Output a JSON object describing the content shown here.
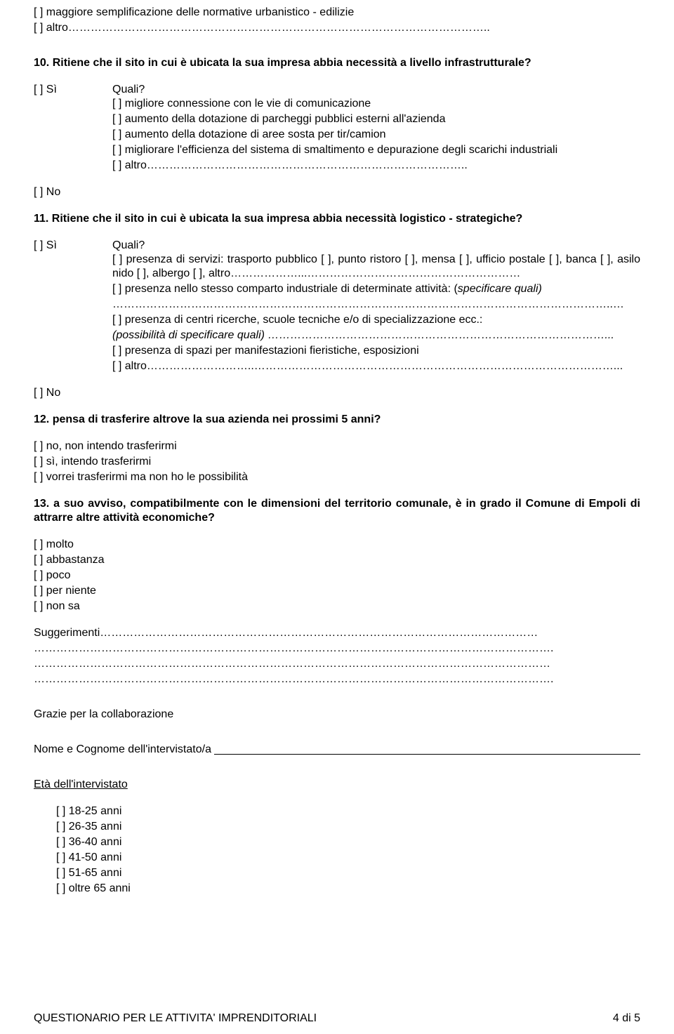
{
  "intro": {
    "opt_semplificazione": "[  ]  maggiore semplificazione delle normative urbanistico - edilizie",
    "opt_altro": "[  ]  altro………………………………………………………………………………………………….."
  },
  "q10": {
    "title": "10. Ritiene che il sito in cui è ubicata la sua impresa abbia necessità a livello infrastrutturale?",
    "si": "[  ]  Sì",
    "quali": "Quali?",
    "opts": {
      "a": "[  ]  migliore connessione con le vie di comunicazione",
      "b": "[  ]  aumento della dotazione di parcheggi pubblici esterni all'azienda",
      "c": "[  ]  aumento della dotazione di aree sosta per tir/camion",
      "d": "[  ]  migliorare l'efficienza del sistema di smaltimento e depurazione degli scarichi industriali",
      "e": "[  ]  altro………………………………………………………………………….."
    },
    "no": "[  ]  No"
  },
  "q11": {
    "title": "11. Ritiene che il sito in cui è ubicata la sua impresa abbia necessità logistico - strategiche?",
    "si": "[  ]  Sì",
    "quali": "Quali?",
    "opts": {
      "a": "[  ] presenza di servizi: trasporto pubblico [  ], punto ristoro [  ], mensa [  ], ufficio postale [  ], banca [  ], asilo nido [  ], albergo [  ], altro………………...…………………………………………………",
      "b": "[  ] presenza nello stesso comparto industriale di determinate attività: (",
      "b_italic": "specificare quali)",
      "b_dots": "……………………………………………………………………………………………………………………..…",
      "c": "[  ] presenza di centri ricerche, scuole tecniche e/o di specializzazione ecc.:",
      "c_italic": "(possibilità di specificare quali) ………………………………………………………………………………...",
      "d": "[  ] presenza di spazi per manifestazioni fieristiche, esposizioni",
      "e": "[  ] altro………………………..……………………………………………………………………………………..."
    },
    "no": "[  ]  No"
  },
  "q12": {
    "title": "12. pensa di trasferire altrove la sua azienda nei prossimi 5 anni?",
    "opts": {
      "a": "[  ]  no, non intendo trasferirmi",
      "b": "[  ]  sì, intendo trasferirmi",
      "c": "[  ]  vorrei trasferirmi ma non ho le possibilità"
    }
  },
  "q13": {
    "title": "13. a suo avviso, compatibilmente con le dimensioni del territorio comunale, è in grado il Comune di Empoli di attrarre altre attività economiche?",
    "opts": {
      "a": "[  ]  molto",
      "b": "[  ]  abbastanza",
      "c": "[  ]  poco",
      "d": "[  ]  per niente",
      "e": "[  ]  non sa"
    }
  },
  "suggerimenti": {
    "line1": "Suggerimenti………………………………………………………………………………………………………",
    "line2": "………………………………………………………………………………………………………………………….",
    "line3": "…………………………………………………………………………………………………………………………",
    "line4": "…………………………………………………………………………………………………………………………."
  },
  "thanks": "Grazie per la collaborazione",
  "name_label": "Nome e Cognome dell'intervistato/a",
  "age": {
    "title": "Età dell'intervistato",
    "opts": {
      "a": "[  ]  18-25 anni",
      "b": "[  ]  26-35 anni",
      "c": "[  ]  36-40 anni",
      "d": "[  ]  41-50 anni",
      "e": "[  ]  51-65 anni",
      "f": "[  ]  oltre 65 anni"
    }
  },
  "footer": {
    "left": "QUESTIONARIO PER LE ATTIVITA' IMPRENDITORIALI",
    "right": "4 di 5"
  }
}
